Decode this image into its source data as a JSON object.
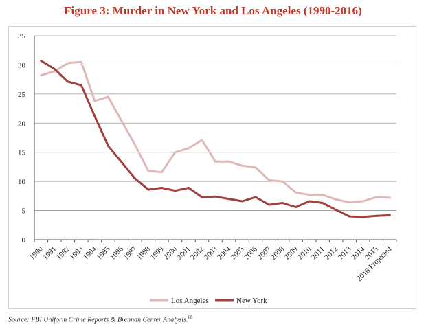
{
  "title": "Figure 3: Murder in New York and Los Angeles (1990-2016)",
  "source_text": "Source: FBI Uniform Crime Reports & Brennan Center Analysis.",
  "source_footnote": "68",
  "colors": {
    "title": "#c0392b",
    "los_angeles": "#dfb8b8",
    "new_york": "#a0403f",
    "grid": "#9a9a9a"
  },
  "chart_data": {
    "type": "line",
    "title": "Figure 3: Murder in New York and Los Angeles (1990-2016)",
    "xlabel": "",
    "ylabel": "",
    "ylim": [
      0,
      35
    ],
    "yticks": [
      0,
      5,
      10,
      15,
      20,
      25,
      30,
      35
    ],
    "grid": true,
    "legend_position": "bottom",
    "categories": [
      "1990",
      "1991",
      "1992",
      "1993",
      "1994",
      "1995",
      "1996",
      "1997",
      "1998",
      "1999",
      "2000",
      "2001",
      "2002",
      "2003",
      "2004",
      "2005",
      "2006",
      "2007",
      "2008",
      "2009",
      "2010",
      "2011",
      "2012",
      "2013",
      "2014",
      "2015",
      "2016 Projected"
    ],
    "series": [
      {
        "name": "Los Angeles",
        "color": "#dfb8b8",
        "values": [
          28.2,
          28.9,
          30.3,
          30.5,
          23.8,
          24.5,
          20.4,
          16.3,
          11.8,
          11.6,
          15.0,
          15.7,
          17.1,
          13.4,
          13.4,
          12.7,
          12.4,
          10.2,
          10.0,
          8.1,
          7.7,
          7.7,
          6.9,
          6.4,
          6.6,
          7.3,
          7.2
        ]
      },
      {
        "name": "New York",
        "color": "#a0403f",
        "values": [
          30.7,
          29.3,
          27.1,
          26.5,
          21.2,
          16.1,
          13.3,
          10.5,
          8.6,
          8.9,
          8.4,
          8.9,
          7.3,
          7.4,
          7.0,
          6.6,
          7.3,
          6.0,
          6.3,
          5.6,
          6.6,
          6.3,
          5.1,
          4.0,
          3.9,
          4.1,
          4.2
        ]
      }
    ]
  }
}
